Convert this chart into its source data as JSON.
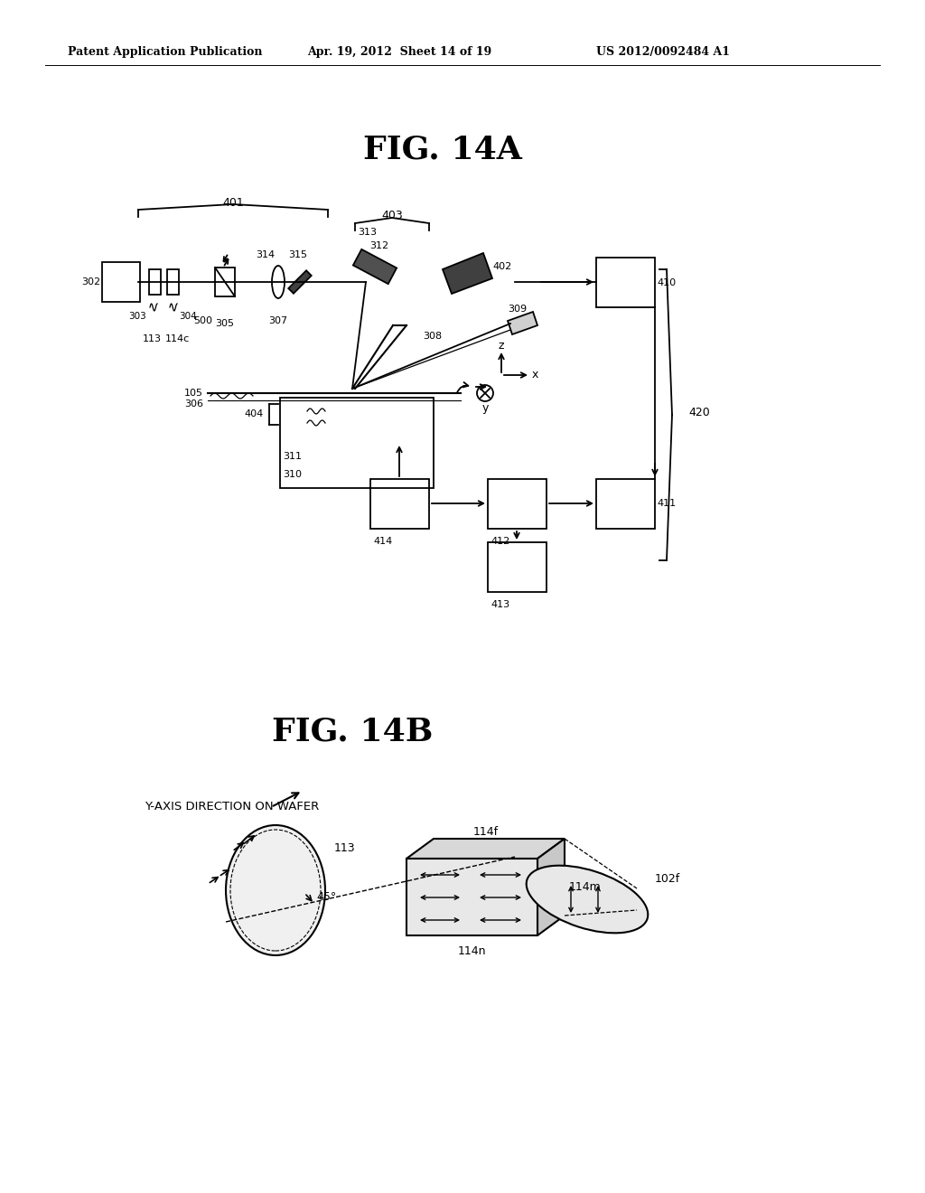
{
  "bg_color": "#ffffff",
  "header_left": "Patent Application Publication",
  "header_center": "Apr. 19, 2012  Sheet 14 of 19",
  "header_right": "US 2012/0092484 A1",
  "fig14a_title": "FIG. 14A",
  "fig14b_title": "FIG. 14B",
  "line_color": "#000000",
  "text_color": "#000000"
}
